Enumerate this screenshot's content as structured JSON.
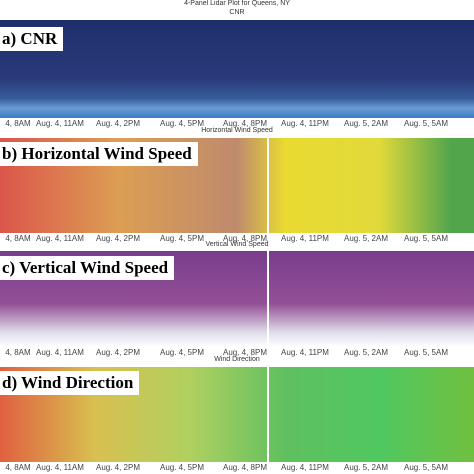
{
  "figure": {
    "title": "4-Panel Lidar Plot for Queens, NY",
    "panels": [
      {
        "subtitle": "CNR",
        "label": "a)  CNR"
      },
      {
        "subtitle": "Horizontal Wind Speed",
        "label": "b)  Horizontal Wind Speed"
      },
      {
        "subtitle": "Vertical Wind Speed",
        "label": "c)  Vertical Wind Speed"
      },
      {
        "subtitle": "Wind Direction",
        "label": "d)  Wind Direction"
      }
    ],
    "xticks": [
      "4, 8AM",
      "Aug. 4, 11AM",
      "Aug. 4, 2PM",
      "Aug. 4, 5PM",
      "Aug. 4, 8PM",
      "Aug. 4, 11PM",
      "Aug. 5, 2AM",
      "Aug. 5, 5AM"
    ]
  }
}
